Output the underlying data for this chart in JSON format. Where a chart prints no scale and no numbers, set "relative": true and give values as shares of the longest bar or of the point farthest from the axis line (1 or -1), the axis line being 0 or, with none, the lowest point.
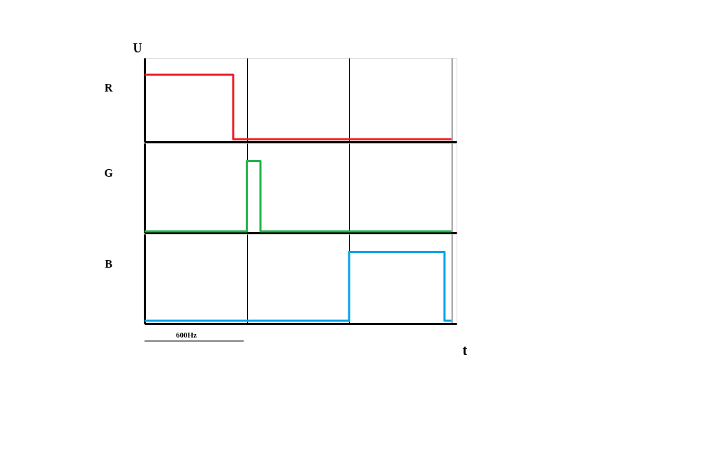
{
  "chart_data": [
    {
      "type": "step",
      "relative": true,
      "ylabel": "R",
      "annotations": [
        "U"
      ],
      "grid": "x",
      "tick_labels": false,
      "categories": [
        null,
        null,
        null,
        null,
        null,
        null,
        null,
        null,
        null,
        null,
        null,
        null,
        null,
        null,
        null,
        null,
        null,
        null,
        null,
        null,
        null,
        null,
        null,
        null,
        null,
        null,
        null,
        null,
        null,
        null,
        null,
        null,
        null,
        null,
        null,
        null,
        null,
        null,
        null,
        null,
        null,
        null,
        null,
        null,
        null,
        null
      ],
      "series": [
        {
          "color": "#ed1c24",
          "values": [
            1,
            1,
            1,
            1,
            1,
            1,
            1,
            1,
            1,
            1,
            1,
            1,
            1,
            0.04,
            0.04,
            0.04,
            0.04,
            0.04,
            0.04,
            0.04,
            0.04,
            0.04,
            0.04,
            0.04,
            0.04,
            0.04,
            0.04,
            0.04,
            0.04,
            0.04,
            0.04,
            0.04,
            0.04,
            0.04,
            0.04,
            0.04,
            0.04,
            0.04,
            0.04,
            0.04,
            0.04,
            0.04,
            0.04,
            0.04,
            0.04,
            0.04
          ]
        }
      ]
    },
    {
      "type": "step",
      "relative": true,
      "ylabel": "G",
      "grid": "x",
      "tick_labels": false,
      "categories": [
        null,
        null,
        null,
        null,
        null,
        null,
        null,
        null,
        null,
        null,
        null,
        null,
        null,
        null,
        null,
        null,
        null,
        null,
        null,
        null,
        null,
        null,
        null,
        null,
        null,
        null,
        null,
        null,
        null,
        null,
        null,
        null,
        null,
        null,
        null,
        null,
        null,
        null,
        null,
        null,
        null,
        null,
        null,
        null,
        null,
        null
      ],
      "series": [
        {
          "color": "#22b14c",
          "values": [
            0.02,
            0.02,
            0.02,
            0.02,
            0.02,
            0.02,
            0.02,
            0.02,
            0.02,
            0.02,
            0.02,
            0.02,
            0.02,
            0.02,
            0.02,
            1,
            1,
            0.02,
            0.02,
            0.02,
            0.02,
            0.02,
            0.02,
            0.02,
            0.02,
            0.02,
            0.02,
            0.02,
            0.02,
            0.02,
            0.02,
            0.02,
            0.02,
            0.02,
            0.02,
            0.02,
            0.02,
            0.02,
            0.02,
            0.02,
            0.02,
            0.02,
            0.02,
            0.02,
            0.02,
            0.02
          ]
        }
      ]
    },
    {
      "type": "step",
      "relative": true,
      "ylabel": "B",
      "xlabel": "t",
      "annotations": [
        "600Hz"
      ],
      "grid": "x",
      "tick_labels": false,
      "categories": [
        null,
        null,
        null,
        null,
        null,
        null,
        null,
        null,
        null,
        null,
        null,
        null,
        null,
        null,
        null,
        null,
        null,
        null,
        null,
        null,
        null,
        null,
        null,
        null,
        null,
        null,
        null,
        null,
        null,
        null,
        null,
        null,
        null,
        null,
        null,
        null,
        null,
        null,
        null,
        null,
        null,
        null,
        null,
        null,
        null,
        null
      ],
      "series": [
        {
          "color": "#00a2e8",
          "values": [
            0.04,
            0.04,
            0.04,
            0.04,
            0.04,
            0.04,
            0.04,
            0.04,
            0.04,
            0.04,
            0.04,
            0.04,
            0.04,
            0.04,
            0.04,
            0.04,
            0.04,
            0.04,
            0.04,
            0.04,
            0.04,
            0.04,
            0.04,
            0.04,
            0.04,
            0.04,
            0.04,
            0.04,
            0.04,
            0.04,
            1,
            1,
            1,
            1,
            1,
            1,
            1,
            1,
            1,
            1,
            1,
            1,
            1,
            1,
            0.04,
            0.04
          ]
        }
      ]
    }
  ]
}
